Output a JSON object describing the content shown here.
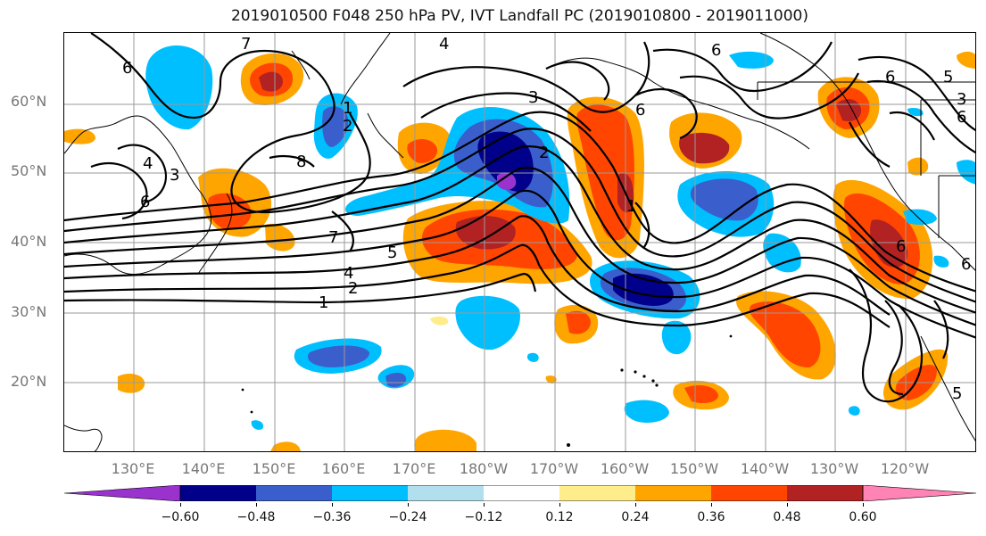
{
  "title": "2019010500 F048 250 hPa PV, IVT Landfall PC (2019010800 - 2019011000)",
  "lat_labels": [
    "60°N",
    "50°N",
    "40°N",
    "30°N",
    "20°N"
  ],
  "lon_labels": [
    "130°E",
    "140°E",
    "150°E",
    "160°E",
    "170°E",
    "180°W",
    "170°W",
    "160°W",
    "150°W",
    "140°W",
    "130°W",
    "120°W"
  ],
  "contour_labels": [
    "7",
    "6",
    "4",
    "6",
    "5",
    "8",
    "6",
    "1",
    "2",
    "7",
    "3",
    "4",
    "5",
    "1",
    "2",
    "6",
    "5",
    "3",
    "4",
    "1",
    "6",
    "2",
    "6",
    "6",
    "6",
    "3"
  ],
  "colorbar": {
    "tick_labels": [
      "−0.60",
      "−0.48",
      "−0.36",
      "−0.24",
      "−0.12",
      "0.12",
      "0.24",
      "0.36",
      "0.48",
      "0.60"
    ],
    "colors": [
      "#9a32cd",
      "#00008b",
      "#3a5fcd",
      "#00bfff",
      "#b2dfee",
      "#ffffff",
      "#ffec8b",
      "#ffa500",
      "#ff4500",
      "#b22222",
      "#ff83b4"
    ]
  }
}
